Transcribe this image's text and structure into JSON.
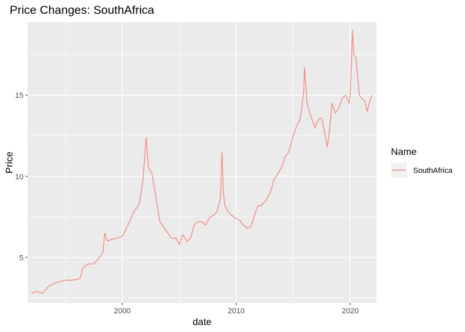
{
  "chart_data": {
    "type": "line",
    "title": "Price Changes: SouthAfrica",
    "xlabel": "date",
    "ylabel": "Price",
    "xlim": [
      1991.7,
      2022.3
    ],
    "ylim": [
      2.2,
      19.5
    ],
    "x_ticks": [
      2000,
      2010,
      2020
    ],
    "x_tick_labels": [
      "2000",
      "2010",
      "2020"
    ],
    "y_ticks": [
      5,
      10,
      15
    ],
    "y_tick_labels": [
      "5",
      "10",
      "15"
    ],
    "grid": true,
    "legend": {
      "title": "Name",
      "position": "right"
    },
    "series": [
      {
        "name": "SouthAfrica",
        "color": "#F8766D",
        "x": [
          1992.0,
          1992.5,
          1993.0,
          1993.5,
          1994.0,
          1994.5,
          1995.0,
          1995.3,
          1995.6,
          1996.0,
          1996.3,
          1996.5,
          1996.8,
          1997.0,
          1997.5,
          1998.0,
          1998.3,
          1998.45,
          1998.7,
          1999.0,
          1999.5,
          2000.0,
          2000.5,
          2001.0,
          2001.5,
          2001.8,
          2002.0,
          2002.1,
          2002.3,
          2002.6,
          2003.0,
          2003.3,
          2003.7,
          2004.0,
          2004.3,
          2004.7,
          2005.0,
          2005.3,
          2005.7,
          2006.0,
          2006.3,
          2006.6,
          2007.0,
          2007.3,
          2007.7,
          2008.0,
          2008.3,
          2008.6,
          2008.75,
          2008.85,
          2009.0,
          2009.3,
          2009.6,
          2010.0,
          2010.3,
          2010.6,
          2011.0,
          2011.3,
          2011.6,
          2011.9,
          2012.2,
          2012.6,
          2013.0,
          2013.3,
          2013.6,
          2014.0,
          2014.3,
          2014.6,
          2015.0,
          2015.3,
          2015.6,
          2015.9,
          2016.0,
          2016.2,
          2016.4,
          2016.6,
          2016.9,
          2017.2,
          2017.5,
          2017.8,
          2018.0,
          2018.2,
          2018.4,
          2018.7,
          2019.0,
          2019.3,
          2019.6,
          2019.9,
          2020.0,
          2020.2,
          2020.3,
          2020.5,
          2020.8,
          2021.0,
          2021.3,
          2021.5,
          2021.7,
          2021.9
        ],
        "values": [
          2.8,
          2.9,
          2.8,
          3.2,
          3.4,
          3.5,
          3.6,
          3.6,
          3.6,
          3.65,
          3.7,
          4.3,
          4.5,
          4.6,
          4.6,
          5.0,
          5.3,
          6.5,
          6.0,
          6.1,
          6.2,
          6.3,
          7.0,
          7.8,
          8.3,
          9.7,
          11.5,
          12.4,
          10.5,
          10.2,
          8.5,
          7.2,
          6.8,
          6.5,
          6.2,
          6.2,
          5.8,
          6.4,
          6.0,
          6.2,
          7.0,
          7.2,
          7.2,
          7.0,
          7.5,
          7.6,
          7.8,
          8.6,
          11.5,
          9.2,
          8.2,
          7.8,
          7.6,
          7.4,
          7.3,
          7.0,
          6.8,
          6.9,
          7.6,
          8.2,
          8.2,
          8.5,
          9.0,
          9.8,
          10.1,
          10.6,
          11.2,
          11.5,
          12.5,
          13.1,
          13.5,
          15.0,
          16.7,
          14.6,
          14.0,
          13.6,
          13.0,
          13.5,
          13.6,
          12.5,
          11.8,
          13.0,
          14.5,
          13.9,
          14.2,
          14.8,
          15.0,
          14.5,
          15.0,
          19.0,
          17.5,
          17.3,
          15.0,
          14.8,
          14.6,
          14.0,
          14.6,
          15.0
        ]
      }
    ]
  }
}
